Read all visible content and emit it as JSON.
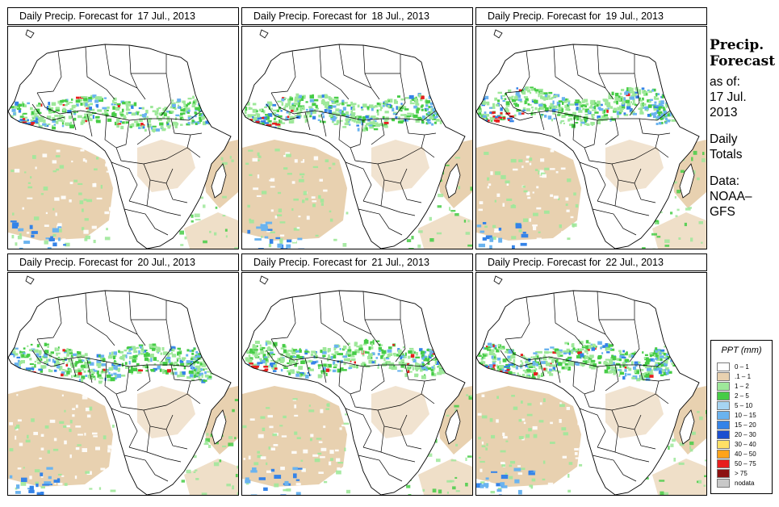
{
  "panels": [
    {
      "title": "Daily Precip. Forecast for",
      "date": "17 Jul., 2013"
    },
    {
      "title": "Daily Precip. Forecast for",
      "date": "18 Jul., 2013"
    },
    {
      "title": "Daily Precip. Forecast for",
      "date": "19 Jul., 2013"
    },
    {
      "title": "Daily Precip. Forecast for",
      "date": "20 Jul., 2013"
    },
    {
      "title": "Daily Precip. Forecast for",
      "date": "21 Jul., 2013"
    },
    {
      "title": "Daily Precip. Forecast for",
      "date": "22 Jul., 2013"
    }
  ],
  "side_info": {
    "heading_line1": "Precip.",
    "heading_line2": "Forecast",
    "asof_label": "as of:",
    "asof_date_line1": "17 Jul.",
    "asof_date_line2": "2013",
    "totals_line1": "Daily",
    "totals_line2": "Totals",
    "data_label": "Data:",
    "data_source_line1": "NOAA–",
    "data_source_line2": "GFS"
  },
  "legend": {
    "title": "PPT (mm)",
    "classes": [
      {
        "label": "0 – 1",
        "color": "#ffffff"
      },
      {
        "label": ".1 – 1",
        "color": "#e8d1b0"
      },
      {
        "label": "1 – 2",
        "color": "#9ee89a"
      },
      {
        "label": "2 – 5",
        "color": "#46cc46"
      },
      {
        "label": "5 – 10",
        "color": "#a6d4f2"
      },
      {
        "label": "10 – 15",
        "color": "#6ab3ef"
      },
      {
        "label": "15 – 20",
        "color": "#3483e8"
      },
      {
        "label": "20 – 30",
        "color": "#1a4fd0"
      },
      {
        "label": "30 – 40",
        "color": "#ffe066"
      },
      {
        "label": "40 – 50",
        "color": "#ffa31a"
      },
      {
        "label": "50 – 75",
        "color": "#e81e1e"
      },
      {
        "label": "> 75",
        "color": "#8c1010"
      },
      {
        "label": "nodata",
        "color": "#c8c8c8"
      }
    ]
  },
  "colors": {
    "dry": "#e8d1b0",
    "light": "#9ee89a",
    "moderate": "#46cc46",
    "heavy": "#6ab3ef",
    "very_heavy": "#3483e8",
    "extreme": "#e81e1e",
    "border": "#000000"
  }
}
